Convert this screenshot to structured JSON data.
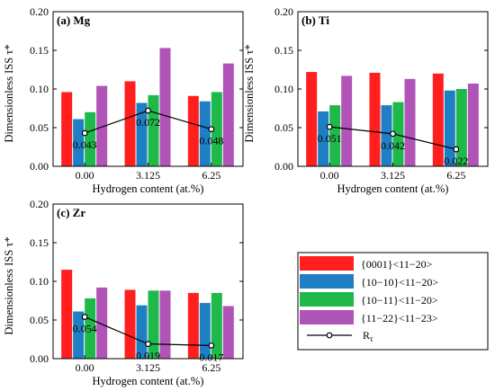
{
  "colors": {
    "s0001": "#ff1f1f",
    "s1010": "#1f7fc4",
    "s1011": "#1fb84a",
    "s1122": "#b054b8",
    "rtau": "#000000"
  },
  "legend": {
    "entries": [
      {
        "key": "s0001",
        "label": "{0001}<11−20>"
      },
      {
        "key": "s1010",
        "label": "{10−10}<11−20>"
      },
      {
        "key": "s1011",
        "label": "{10−11}<11−20>"
      },
      {
        "key": "s1122",
        "label": "{11−22}<11−23>"
      }
    ],
    "line_label": "R",
    "line_label_sub": "τ"
  },
  "chart_data": [
    {
      "type": "bar",
      "panel": "(a) Mg",
      "categories": [
        "0.00",
        "3.125",
        "6.25"
      ],
      "xlabel": "Hydrogen content (at.%)",
      "ylabel": "Dimensionless ISS τ*",
      "ylim": [
        0,
        0.2
      ],
      "yticks": [
        "0.00",
        "0.05",
        "0.10",
        "0.15",
        "0.20"
      ],
      "series": [
        {
          "key": "s0001",
          "values": [
            0.096,
            0.11,
            0.091
          ]
        },
        {
          "key": "s1010",
          "values": [
            0.061,
            0.082,
            0.084
          ]
        },
        {
          "key": "s1011",
          "values": [
            0.07,
            0.092,
            0.096
          ]
        },
        {
          "key": "s1122",
          "values": [
            0.104,
            0.153,
            0.133
          ]
        }
      ],
      "line": {
        "key": "rtau",
        "values": [
          0.043,
          0.072,
          0.048
        ],
        "labels": [
          "0.043",
          "0.072",
          "0.048"
        ]
      }
    },
    {
      "type": "bar",
      "panel": "(b) Ti",
      "categories": [
        "0.00",
        "3.125",
        "6.25"
      ],
      "xlabel": "Hydrogen content (at.%)",
      "ylabel": "Dimensionless ISS τ*",
      "ylim": [
        0,
        0.2
      ],
      "yticks": [
        "0.00",
        "0.05",
        "0.10",
        "0.15",
        "0.20"
      ],
      "series": [
        {
          "key": "s0001",
          "values": [
            0.122,
            0.121,
            0.12
          ]
        },
        {
          "key": "s1010",
          "values": [
            0.071,
            0.079,
            0.098
          ]
        },
        {
          "key": "s1011",
          "values": [
            0.079,
            0.083,
            0.1
          ]
        },
        {
          "key": "s1122",
          "values": [
            0.117,
            0.113,
            0.107
          ]
        }
      ],
      "line": {
        "key": "rtau",
        "values": [
          0.051,
          0.042,
          0.022
        ],
        "labels": [
          "0.051",
          "0.042",
          "0.022"
        ]
      }
    },
    {
      "type": "bar",
      "panel": "(c) Zr",
      "categories": [
        "0.00",
        "3.125",
        "6.25"
      ],
      "xlabel": "Hydrogen content (at.%)",
      "ylabel": "Dimensionless ISS τ*",
      "ylim": [
        0,
        0.2
      ],
      "yticks": [
        "0.00",
        "0.05",
        "0.10",
        "0.15",
        "0.20"
      ],
      "series": [
        {
          "key": "s0001",
          "values": [
            0.115,
            0.089,
            0.085
          ]
        },
        {
          "key": "s1010",
          "values": [
            0.061,
            0.069,
            0.072
          ]
        },
        {
          "key": "s1011",
          "values": [
            0.078,
            0.088,
            0.085
          ]
        },
        {
          "key": "s1122",
          "values": [
            0.092,
            0.088,
            0.068
          ]
        }
      ],
      "line": {
        "key": "rtau",
        "values": [
          0.054,
          0.019,
          0.017
        ],
        "labels": [
          "0.054",
          "0.019",
          "0.017"
        ]
      }
    }
  ]
}
